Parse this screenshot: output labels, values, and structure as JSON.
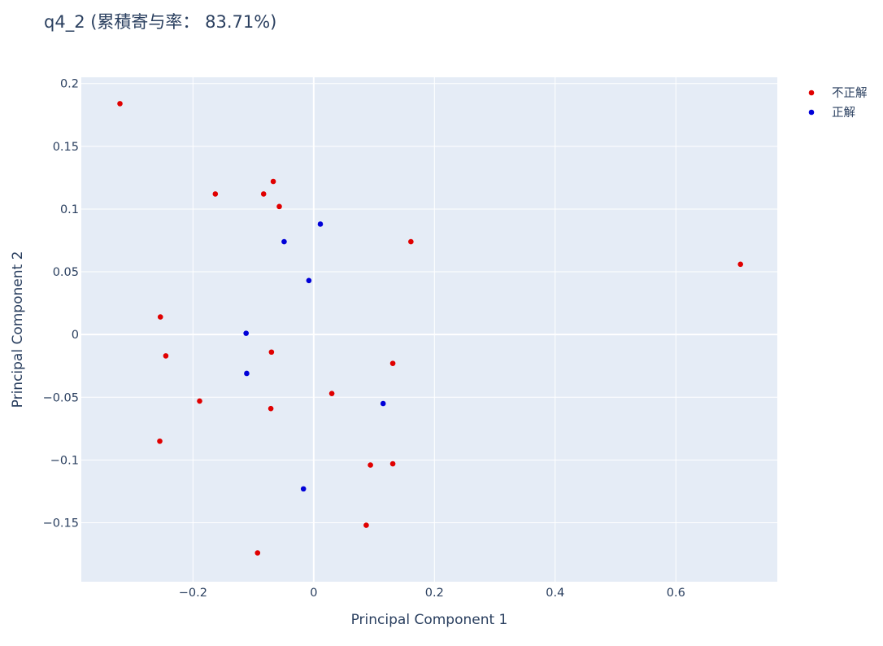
{
  "chart_data": {
    "type": "scatter",
    "title": "q4_2 (累積寄与率： 83.71%)",
    "xlabel": "Principal Component 1",
    "ylabel": "Principal Component 2",
    "xlim": [
      -0.385,
      0.768
    ],
    "ylim": [
      -0.197,
      0.205
    ],
    "xticks": [
      -0.2,
      0,
      0.2,
      0.4,
      0.6
    ],
    "xtick_labels": [
      "−0.2",
      "0",
      "0.2",
      "0.4",
      "0.6"
    ],
    "yticks": [
      -0.15,
      -0.1,
      -0.05,
      0,
      0.05,
      0.1,
      0.15,
      0.2
    ],
    "ytick_labels": [
      "−0.15",
      "−0.1",
      "−0.05",
      "0",
      "0.05",
      "0.1",
      "0.15",
      "0.2"
    ],
    "grid": true,
    "legend_position": "top-right",
    "background_color": "#e5ecf6",
    "series": [
      {
        "name": "不正解",
        "color": "#e00000",
        "points": [
          [
            -0.321,
            0.184
          ],
          [
            -0.163,
            0.112
          ],
          [
            -0.067,
            0.122
          ],
          [
            -0.083,
            0.112
          ],
          [
            -0.057,
            0.102
          ],
          [
            0.161,
            0.074
          ],
          [
            0.707,
            0.056
          ],
          [
            -0.254,
            0.014
          ],
          [
            -0.245,
            -0.017
          ],
          [
            -0.07,
            -0.014
          ],
          [
            0.131,
            -0.023
          ],
          [
            -0.189,
            -0.053
          ],
          [
            -0.071,
            -0.059
          ],
          [
            0.03,
            -0.047
          ],
          [
            -0.255,
            -0.085
          ],
          [
            0.094,
            -0.104
          ],
          [
            0.131,
            -0.103
          ],
          [
            0.087,
            -0.152
          ],
          [
            -0.093,
            -0.174
          ]
        ]
      },
      {
        "name": "正解",
        "color": "#0000d8",
        "points": [
          [
            0.011,
            0.088
          ],
          [
            -0.049,
            0.074
          ],
          [
            -0.008,
            0.043
          ],
          [
            -0.112,
            0.001
          ],
          [
            -0.111,
            -0.031
          ],
          [
            0.115,
            -0.055
          ],
          [
            -0.017,
            -0.123
          ]
        ]
      }
    ]
  }
}
